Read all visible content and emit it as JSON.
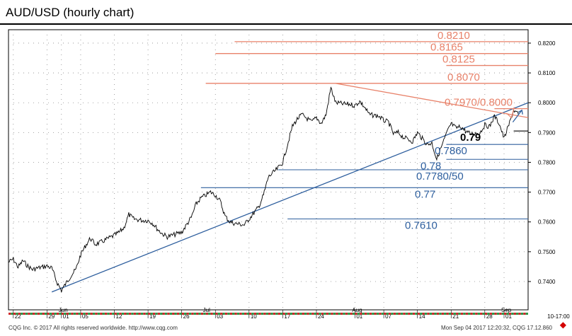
{
  "title": "AUD/USD (hourly chart)",
  "footer_left": "CQG Inc. © 2017 All rights reserved worldwide. http://www.cqg.com",
  "footer_right": "Mon Sep 04 2017 12:20:32, CQG 17.12.860",
  "nav_arrow": "◆",
  "colors": {
    "resistance": "#e8826a",
    "support": "#2e5f9e",
    "price": "#000000",
    "trendline": "#2e5f9e",
    "resistance_trendline": "#e8826a"
  },
  "chart_data": {
    "type": "line",
    "title": "AUD/USD (hourly chart)",
    "xlabel": "",
    "ylabel": "",
    "ylim": [
      0.7305,
      0.8245
    ],
    "x_range": [
      "2017-05-21",
      "2017-09-06"
    ],
    "y_ticks": [
      "0.8200",
      "0.8100",
      "0.8000",
      "0.7900",
      "0.7800",
      "0.7700",
      "0.7600",
      "0.7500",
      "0.7400"
    ],
    "y_tick_values": [
      0.82,
      0.81,
      0.8,
      0.79,
      0.78,
      0.77,
      0.76,
      0.75,
      0.74
    ],
    "month_labels": [
      {
        "label": "Jun",
        "date": "2017-06-01"
      },
      {
        "label": "Jul",
        "date": "2017-07-01"
      },
      {
        "label": "Aug",
        "date": "2017-08-01"
      },
      {
        "label": "Sep",
        "date": "2017-09-01"
      }
    ],
    "day_labels": [
      {
        "label": "22",
        "date": "2017-05-22"
      },
      {
        "label": "29",
        "date": "2017-05-29"
      },
      {
        "label": "01",
        "date": "2017-06-01"
      },
      {
        "label": "05",
        "date": "2017-06-05"
      },
      {
        "label": "12",
        "date": "2017-06-12"
      },
      {
        "label": "19",
        "date": "2017-06-19"
      },
      {
        "label": "26",
        "date": "2017-06-26"
      },
      {
        "label": "03",
        "date": "2017-07-03"
      },
      {
        "label": "10",
        "date": "2017-07-10"
      },
      {
        "label": "17",
        "date": "2017-07-17"
      },
      {
        "label": "24",
        "date": "2017-07-24"
      },
      {
        "label": "01",
        "date": "2017-08-01"
      },
      {
        "label": "07",
        "date": "2017-08-07"
      },
      {
        "label": "14",
        "date": "2017-08-14"
      },
      {
        "label": "21",
        "date": "2017-08-21"
      },
      {
        "label": "28",
        "date": "2017-08-28"
      },
      {
        "label": "01",
        "date": "2017-09-01"
      }
    ],
    "axis_extra_label": {
      "label": "10-17:00",
      "date": "2017-09-10"
    },
    "price_series": {
      "name": "",
      "points": [
        [
          "2017-05-21",
          0.7465
        ],
        [
          "2017-05-22",
          0.7475
        ],
        [
          "2017-05-23",
          0.7448
        ],
        [
          "2017-05-24",
          0.747
        ],
        [
          "2017-05-25",
          0.7452
        ],
        [
          "2017-05-26",
          0.744
        ],
        [
          "2017-05-27",
          0.7445
        ],
        [
          "2017-05-29",
          0.7452
        ],
        [
          "2017-05-30",
          0.7445
        ],
        [
          "2017-05-31",
          0.74
        ],
        [
          "2017-06-01",
          0.737
        ],
        [
          "2017-06-02",
          0.7395
        ],
        [
          "2017-06-03",
          0.742
        ],
        [
          "2017-06-04",
          0.744
        ],
        [
          "2017-06-05",
          0.749
        ],
        [
          "2017-06-06",
          0.752
        ],
        [
          "2017-06-07",
          0.7545
        ],
        [
          "2017-06-08",
          0.7525
        ],
        [
          "2017-06-09",
          0.753
        ],
        [
          "2017-06-12",
          0.7555
        ],
        [
          "2017-06-13",
          0.7565
        ],
        [
          "2017-06-14",
          0.758
        ],
        [
          "2017-06-15",
          0.7625
        ],
        [
          "2017-06-16",
          0.761
        ],
        [
          "2017-06-18",
          0.7605
        ],
        [
          "2017-06-19",
          0.7605
        ],
        [
          "2017-06-20",
          0.7595
        ],
        [
          "2017-06-21",
          0.7575
        ],
        [
          "2017-06-22",
          0.756
        ],
        [
          "2017-06-23",
          0.755
        ],
        [
          "2017-06-26",
          0.7565
        ],
        [
          "2017-06-27",
          0.759
        ],
        [
          "2017-06-28",
          0.7615
        ],
        [
          "2017-06-29",
          0.766
        ],
        [
          "2017-06-30",
          0.768
        ],
        [
          "2017-07-02",
          0.77
        ],
        [
          "2017-07-03",
          0.769
        ],
        [
          "2017-07-04",
          0.767
        ],
        [
          "2017-07-05",
          0.762
        ],
        [
          "2017-07-06",
          0.76
        ],
        [
          "2017-07-07",
          0.7595
        ],
        [
          "2017-07-09",
          0.759
        ],
        [
          "2017-07-10",
          0.761
        ],
        [
          "2017-07-11",
          0.763
        ],
        [
          "2017-07-12",
          0.765
        ],
        [
          "2017-07-13",
          0.769
        ],
        [
          "2017-07-14",
          0.775
        ],
        [
          "2017-07-16",
          0.778
        ],
        [
          "2017-07-17",
          0.78
        ],
        [
          "2017-07-18",
          0.786
        ],
        [
          "2017-07-19",
          0.792
        ],
        [
          "2017-07-20",
          0.7945
        ],
        [
          "2017-07-21",
          0.796
        ],
        [
          "2017-07-23",
          0.7935
        ],
        [
          "2017-07-24",
          0.795
        ],
        [
          "2017-07-25",
          0.793
        ],
        [
          "2017-07-26",
          0.796
        ],
        [
          "2017-07-27",
          0.805
        ],
        [
          "2017-07-28",
          0.8
        ],
        [
          "2017-07-30",
          0.7995
        ],
        [
          "2017-07-31",
          0.7995
        ],
        [
          "2017-08-01",
          0.799
        ],
        [
          "2017-08-02",
          0.8005
        ],
        [
          "2017-08-03",
          0.7985
        ],
        [
          "2017-08-04",
          0.796
        ],
        [
          "2017-08-06",
          0.7955
        ],
        [
          "2017-08-07",
          0.794
        ],
        [
          "2017-08-08",
          0.7935
        ],
        [
          "2017-08-09",
          0.7895
        ],
        [
          "2017-08-10",
          0.79
        ],
        [
          "2017-08-11",
          0.7885
        ],
        [
          "2017-08-13",
          0.787
        ],
        [
          "2017-08-14",
          0.79
        ],
        [
          "2017-08-15",
          0.788
        ],
        [
          "2017-08-16",
          0.786
        ],
        [
          "2017-08-17",
          0.7865
        ],
        [
          "2017-08-18",
          0.781
        ],
        [
          "2017-08-20",
          0.7895
        ],
        [
          "2017-08-21",
          0.793
        ],
        [
          "2017-08-22",
          0.7915
        ],
        [
          "2017-08-23",
          0.792
        ],
        [
          "2017-08-24",
          0.7905
        ],
        [
          "2017-08-25",
          0.7895
        ],
        [
          "2017-08-27",
          0.79
        ],
        [
          "2017-08-28",
          0.7925
        ],
        [
          "2017-08-29",
          0.792
        ],
        [
          "2017-08-30",
          0.7955
        ],
        [
          "2017-08-31",
          0.793
        ],
        [
          "2017-09-01",
          0.788
        ],
        [
          "2017-09-02",
          0.7925
        ],
        [
          "2017-09-03",
          0.7975
        ],
        [
          "2017-09-04",
          0.796
        ]
      ]
    },
    "forecast_arrow": [
      [
        "2017-09-04",
        0.7935
      ],
      [
        "2017-09-05",
        0.7975
      ]
    ],
    "trendlines": [
      {
        "kind": "support",
        "from": [
          "2017-05-30",
          0.7365
        ],
        "to": [
          "2017-09-06",
          0.8
        ]
      },
      {
        "kind": "resistance",
        "from": [
          "2017-07-28",
          0.8065
        ],
        "to": [
          "2017-09-06",
          0.795
        ]
      }
    ],
    "resistance_levels": [
      {
        "label": "0.8210",
        "value": 0.8205,
        "from": "2017-07-07"
      },
      {
        "label": "0.8165",
        "value": 0.8165,
        "from": "2017-07-03"
      },
      {
        "label": "0.8125",
        "value": 0.8125,
        "from": "2017-08-20"
      },
      {
        "label": "0.8070",
        "value": 0.8065,
        "from": "2017-07-01"
      },
      {
        "label": "0.7970/0.8000",
        "value": 0.798,
        "from": "2017-08-30"
      }
    ],
    "support_levels": [
      {
        "label": "0.79",
        "value": 0.7905,
        "from": "2017-09-03"
      },
      {
        "label": "0.7860",
        "value": 0.786,
        "from": "2017-08-20"
      },
      {
        "label": "0.78",
        "value": 0.781,
        "from": "2017-08-20"
      },
      {
        "label": "0.7780/50",
        "value": 0.7775,
        "from": "2017-07-16"
      },
      {
        "label": "0.77",
        "value": 0.7715,
        "from": "2017-06-30"
      },
      {
        "label": "0.7610",
        "value": 0.761,
        "from": "2017-07-18"
      }
    ]
  }
}
